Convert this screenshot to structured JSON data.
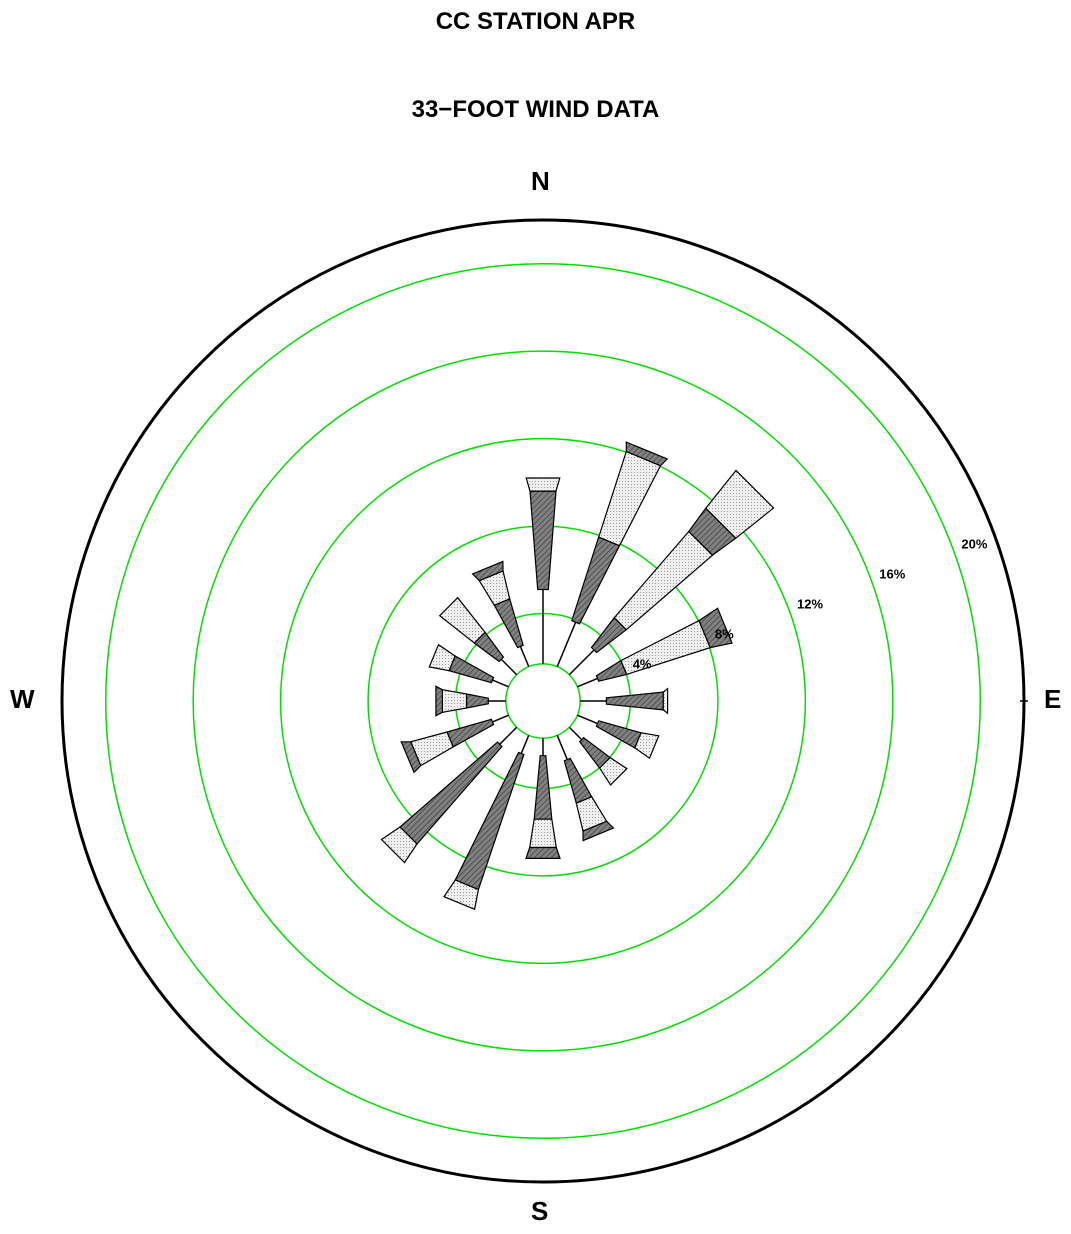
{
  "title": "CC STATION APR",
  "subtitle": "33−FOOT WIND DATA",
  "compass": {
    "n": "N",
    "s": "S",
    "w": "W",
    "e": "E"
  },
  "colors": {
    "ring": "#00e000",
    "frame": "#000000",
    "dark_segment": "#777777",
    "light_segment": "#e6e6e6"
  },
  "chart_data": {
    "type": "windrose",
    "title": "CC STATION APR",
    "subtitle": "33−FOOT WIND DATA",
    "radial_unit": "%",
    "rings": [
      {
        "value": 4,
        "label": "4%"
      },
      {
        "value": 8,
        "label": "8%"
      },
      {
        "value": 12,
        "label": "12%"
      },
      {
        "value": 16,
        "label": "16%"
      },
      {
        "value": 20,
        "label": "20%"
      }
    ],
    "rmax": 22,
    "calm_circle_value": 1.7,
    "directions": [
      {
        "dir": "N",
        "deg": 0,
        "segments": [
          3.4,
          4.5,
          0.6
        ]
      },
      {
        "dir": "NNE",
        "deg": 22.5,
        "segments": [
          2.2,
          4.0,
          4.1,
          0.4
        ]
      },
      {
        "dir": "NE",
        "deg": 45,
        "segments": [
          1.6,
          1.7,
          5.2,
          1.3,
          2.2
        ]
      },
      {
        "dir": "ENE",
        "deg": 67.5,
        "segments": [
          1.0,
          1.3,
          4.0,
          1.0
        ]
      },
      {
        "dir": "E",
        "deg": 90,
        "segments": [
          1.2,
          2.6,
          0.2
        ]
      },
      {
        "dir": "ESE",
        "deg": 112.5,
        "segments": [
          1.0,
          2.0,
          0.8
        ]
      },
      {
        "dir": "SE",
        "deg": 135,
        "segments": [
          0.8,
          1.5,
          0.9
        ]
      },
      {
        "dir": "SSE",
        "deg": 157.5,
        "segments": [
          1.2,
          2.0,
          1.3,
          0.4
        ]
      },
      {
        "dir": "S",
        "deg": 180,
        "segments": [
          0.8,
          2.9,
          1.3,
          0.5
        ]
      },
      {
        "dir": "SSW",
        "deg": 202.5,
        "segments": [
          0.9,
          6.5,
          0.9
        ]
      },
      {
        "dir": "SW",
        "deg": 225,
        "segments": [
          1.1,
          5.9,
          1.0
        ]
      },
      {
        "dir": "WSW",
        "deg": 247.5,
        "segments": [
          0.8,
          2.1,
          1.7,
          0.4
        ]
      },
      {
        "dir": "W",
        "deg": 270,
        "segments": [
          0.8,
          1.0,
          1.1,
          0.3
        ]
      },
      {
        "dir": "WNW",
        "deg": 292.5,
        "segments": [
          0.8,
          2.0,
          0.9
        ]
      },
      {
        "dir": "NW",
        "deg": 315,
        "segments": [
          1.0,
          1.4,
          2.0
        ]
      },
      {
        "dir": "NNW",
        "deg": 337.5,
        "segments": [
          1.0,
          2.2,
          1.3,
          0.4
        ]
      }
    ]
  }
}
